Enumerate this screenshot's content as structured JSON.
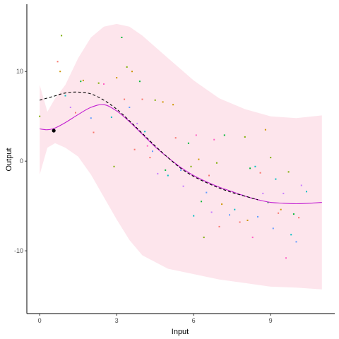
{
  "chart_data": {
    "type": "line",
    "title": "",
    "xlabel": "Input",
    "ylabel": "Output",
    "xlim": [
      -0.5,
      11.5
    ],
    "ylim": [
      -17,
      17.5
    ],
    "x_ticks": [
      0,
      3,
      6,
      9
    ],
    "x_tick_labels": [
      "0",
      "3",
      "6",
      "9"
    ],
    "y_ticks": [
      -10,
      0,
      10
    ],
    "y_tick_labels": [
      "-10",
      "0",
      "10"
    ],
    "grid": false,
    "legend": "none",
    "colors": {
      "band": "#fde5ec",
      "mean_line": "#c21fd2",
      "dashed_line": "#000000",
      "highlight_point": "#000000",
      "axis": "#000000"
    },
    "confidence_band": {
      "x": [
        0,
        0.3,
        0.6,
        1.0,
        1.5,
        2.0,
        2.5,
        3.0,
        3.5,
        4.0,
        5.0,
        6.0,
        7.0,
        8.0,
        9.0,
        10.0,
        11.0
      ],
      "lower": [
        -1.5,
        1.5,
        2.0,
        1.5,
        0.5,
        -1.5,
        -4.0,
        -6.5,
        -8.8,
        -10.5,
        -12.0,
        -12.6,
        -13.2,
        -13.6,
        -14.0,
        -14.1,
        -14.3
      ],
      "upper": [
        8.5,
        5.5,
        7.0,
        8.5,
        11.5,
        13.8,
        15.0,
        15.3,
        15.0,
        14.0,
        11.5,
        9.0,
        7.0,
        5.8,
        5.0,
        4.8,
        5.1
      ]
    },
    "series": [
      {
        "style": "solid",
        "x": [
          0,
          0.3,
          0.6,
          1.0,
          1.5,
          2.0,
          2.5,
          3.0,
          3.5,
          4.0,
          4.5,
          5.0,
          5.5,
          6.0,
          6.5,
          7.0,
          7.5,
          8.0,
          8.5,
          9.0,
          9.5,
          10.0,
          10.5,
          11.0
        ],
        "y": [
          3.6,
          3.5,
          3.7,
          4.3,
          5.2,
          6.0,
          6.3,
          5.6,
          4.4,
          3.0,
          1.6,
          0.4,
          -0.7,
          -1.6,
          -2.3,
          -2.9,
          -3.4,
          -3.9,
          -4.3,
          -4.6,
          -4.7,
          -4.75,
          -4.7,
          -4.6
        ]
      },
      {
        "style": "dashed",
        "x": [
          0,
          0.5,
          1.0,
          1.5,
          2.0,
          2.5,
          3.0,
          3.5,
          4.0,
          4.5,
          5.0,
          5.5,
          6.0,
          6.5,
          7.0,
          7.5,
          8.0,
          8.5
        ],
        "y": [
          6.8,
          7.2,
          7.6,
          7.7,
          7.5,
          6.8,
          5.8,
          4.5,
          3.1,
          1.7,
          0.4,
          -0.8,
          -1.7,
          -2.4,
          -3.0,
          -3.5,
          -3.9,
          -4.3
        ]
      }
    ],
    "highlight_point": {
      "x": 0.55,
      "y": 3.4
    },
    "scatter_points": [
      {
        "x": 0.0,
        "y": 5.0,
        "color": "#7cae00"
      },
      {
        "x": 0.7,
        "y": 11.1,
        "color": "#f8766d"
      },
      {
        "x": 0.8,
        "y": 10.0,
        "color": "#cd9600"
      },
      {
        "x": 0.85,
        "y": 14.0,
        "color": "#7cae00"
      },
      {
        "x": 1.0,
        "y": 7.3,
        "color": "#00bfc4"
      },
      {
        "x": 1.2,
        "y": 6.0,
        "color": "#c77cff"
      },
      {
        "x": 1.4,
        "y": 5.4,
        "color": "#f8766d"
      },
      {
        "x": 1.6,
        "y": 8.9,
        "color": "#00ba38"
      },
      {
        "x": 1.7,
        "y": 9.0,
        "color": "#cd9600"
      },
      {
        "x": 2.0,
        "y": 4.8,
        "color": "#619cff"
      },
      {
        "x": 2.1,
        "y": 3.2,
        "color": "#f8766d"
      },
      {
        "x": 2.3,
        "y": 8.7,
        "color": "#7cae00"
      },
      {
        "x": 2.5,
        "y": 8.6,
        "color": "#ff61c3"
      },
      {
        "x": 2.8,
        "y": 4.9,
        "color": "#00bfc4"
      },
      {
        "x": 3.0,
        "y": 9.3,
        "color": "#cd9600"
      },
      {
        "x": 2.9,
        "y": -0.6,
        "color": "#7cae00"
      },
      {
        "x": 3.2,
        "y": 13.8,
        "color": "#00ba38"
      },
      {
        "x": 3.3,
        "y": 6.9,
        "color": "#f8766d"
      },
      {
        "x": 3.4,
        "y": 10.5,
        "color": "#7cae00"
      },
      {
        "x": 3.5,
        "y": 6.0,
        "color": "#619cff"
      },
      {
        "x": 3.6,
        "y": 10.0,
        "color": "#cd9600"
      },
      {
        "x": 3.7,
        "y": 1.3,
        "color": "#f8766d"
      },
      {
        "x": 3.8,
        "y": 4.2,
        "color": "#c77cff"
      },
      {
        "x": 3.9,
        "y": 8.9,
        "color": "#00ba38"
      },
      {
        "x": 4.0,
        "y": 6.9,
        "color": "#f8766d"
      },
      {
        "x": 4.1,
        "y": 3.3,
        "color": "#00bfc4"
      },
      {
        "x": 4.2,
        "y": 1.7,
        "color": "#ff61c3"
      },
      {
        "x": 4.3,
        "y": 0.4,
        "color": "#f8766d"
      },
      {
        "x": 4.4,
        "y": 1.1,
        "color": "#619cff"
      },
      {
        "x": 4.5,
        "y": 6.8,
        "color": "#7cae00"
      },
      {
        "x": 4.6,
        "y": -1.4,
        "color": "#c77cff"
      },
      {
        "x": 4.8,
        "y": 6.6,
        "color": "#cd9600"
      },
      {
        "x": 4.9,
        "y": -1.0,
        "color": "#00ba38"
      },
      {
        "x": 5.0,
        "y": -1.6,
        "color": "#00bfc4"
      },
      {
        "x": 5.2,
        "y": 6.3,
        "color": "#cd9600"
      },
      {
        "x": 5.3,
        "y": 2.6,
        "color": "#f8766d"
      },
      {
        "x": 5.5,
        "y": -1.0,
        "color": "#619cff"
      },
      {
        "x": 5.6,
        "y": -2.8,
        "color": "#c77cff"
      },
      {
        "x": 5.8,
        "y": 2.0,
        "color": "#00ba38"
      },
      {
        "x": 5.9,
        "y": -0.6,
        "color": "#7cae00"
      },
      {
        "x": 6.0,
        "y": -6.1,
        "color": "#00bfc4"
      },
      {
        "x": 6.1,
        "y": 2.9,
        "color": "#ff61c3"
      },
      {
        "x": 6.2,
        "y": 0.2,
        "color": "#cd9600"
      },
      {
        "x": 6.3,
        "y": -4.5,
        "color": "#00ba38"
      },
      {
        "x": 6.4,
        "y": -8.5,
        "color": "#7cae00"
      },
      {
        "x": 6.5,
        "y": -3.5,
        "color": "#619cff"
      },
      {
        "x": 6.6,
        "y": -1.6,
        "color": "#f8766d"
      },
      {
        "x": 6.7,
        "y": -5.7,
        "color": "#c77cff"
      },
      {
        "x": 6.8,
        "y": 2.4,
        "color": "#ff61c3"
      },
      {
        "x": 6.9,
        "y": -0.2,
        "color": "#7cae00"
      },
      {
        "x": 7.0,
        "y": -7.3,
        "color": "#f8766d"
      },
      {
        "x": 7.1,
        "y": -4.8,
        "color": "#cd9600"
      },
      {
        "x": 7.2,
        "y": 2.9,
        "color": "#00ba38"
      },
      {
        "x": 7.4,
        "y": -6.0,
        "color": "#619cff"
      },
      {
        "x": 7.6,
        "y": -5.4,
        "color": "#00bfc4"
      },
      {
        "x": 7.8,
        "y": -6.8,
        "color": "#f8766d"
      },
      {
        "x": 7.9,
        "y": -3.8,
        "color": "#c77cff"
      },
      {
        "x": 8.0,
        "y": 2.7,
        "color": "#7cae00"
      },
      {
        "x": 8.1,
        "y": -6.6,
        "color": "#cd9600"
      },
      {
        "x": 8.2,
        "y": -0.8,
        "color": "#00ba38"
      },
      {
        "x": 8.3,
        "y": -8.5,
        "color": "#ff61c3"
      },
      {
        "x": 8.4,
        "y": -0.6,
        "color": "#00bfc4"
      },
      {
        "x": 8.5,
        "y": -6.2,
        "color": "#619cff"
      },
      {
        "x": 8.6,
        "y": -1.3,
        "color": "#f8766d"
      },
      {
        "x": 8.7,
        "y": -3.6,
        "color": "#c77cff"
      },
      {
        "x": 8.8,
        "y": 3.5,
        "color": "#cd9600"
      },
      {
        "x": 8.9,
        "y": -4.6,
        "color": "#00ba38"
      },
      {
        "x": 9.0,
        "y": 0.4,
        "color": "#7cae00"
      },
      {
        "x": 9.1,
        "y": -7.5,
        "color": "#619cff"
      },
      {
        "x": 9.2,
        "y": -2.0,
        "color": "#00bfc4"
      },
      {
        "x": 9.3,
        "y": -5.8,
        "color": "#f8766d"
      },
      {
        "x": 9.4,
        "y": -5.4,
        "color": "#cd9600"
      },
      {
        "x": 9.5,
        "y": -3.6,
        "color": "#c77cff"
      },
      {
        "x": 9.6,
        "y": -10.8,
        "color": "#ff61c3"
      },
      {
        "x": 9.7,
        "y": -1.2,
        "color": "#7cae00"
      },
      {
        "x": 9.8,
        "y": -8.2,
        "color": "#00bfc4"
      },
      {
        "x": 9.9,
        "y": -5.9,
        "color": "#00ba38"
      },
      {
        "x": 10.0,
        "y": -9.0,
        "color": "#619cff"
      },
      {
        "x": 10.1,
        "y": -6.3,
        "color": "#f8766d"
      },
      {
        "x": 10.2,
        "y": -2.7,
        "color": "#c77cff"
      },
      {
        "x": 10.4,
        "y": -3.4,
        "color": "#00bfc4"
      }
    ]
  }
}
